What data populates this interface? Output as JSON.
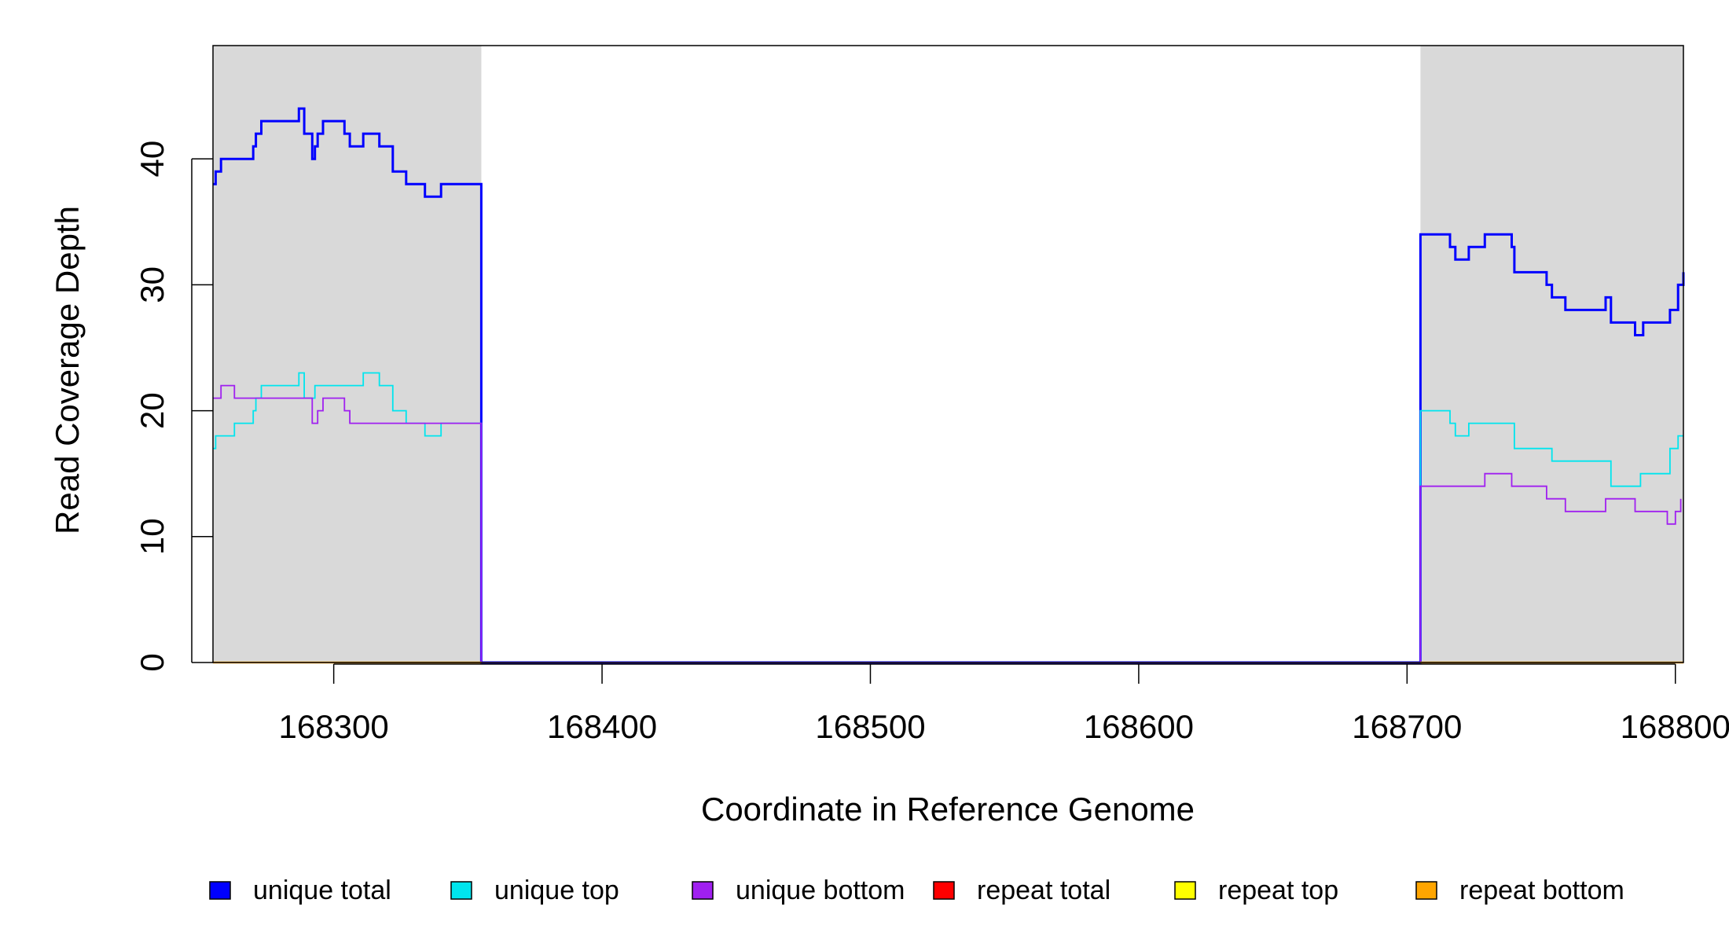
{
  "chart_data": {
    "type": "line",
    "title": "",
    "xlabel": "Coordinate in Reference Genome",
    "ylabel": "Read Coverage Depth",
    "xlim": [
      168255,
      168803
    ],
    "ylim": [
      0,
      49
    ],
    "x_ticks": [
      168300,
      168400,
      168500,
      168600,
      168700,
      168800
    ],
    "x_tick_labels": [
      "168300",
      "168400",
      "168500",
      "168600",
      "168700",
      "168800"
    ],
    "y_ticks": [
      0,
      10,
      20,
      30,
      40
    ],
    "y_tick_labels": [
      "0",
      "10",
      "20",
      "30",
      "40"
    ],
    "shaded_regions": [
      {
        "x_start": 168255,
        "x_end": 168355,
        "color": "#d9d9d9"
      },
      {
        "x_start": 168705,
        "x_end": 168803,
        "color": "#d9d9d9"
      }
    ],
    "legend_position": "bottom",
    "series": [
      {
        "name": "unique total",
        "color": "#0000ff",
        "points": [
          [
            168255,
            38
          ],
          [
            168256,
            39
          ],
          [
            168258,
            40
          ],
          [
            168270,
            41
          ],
          [
            168271,
            42
          ],
          [
            168273,
            43
          ],
          [
            168287,
            44
          ],
          [
            168289,
            42
          ],
          [
            168292,
            40
          ],
          [
            168293,
            41
          ],
          [
            168294,
            42
          ],
          [
            168296,
            43
          ],
          [
            168304,
            42
          ],
          [
            168306,
            41
          ],
          [
            168311,
            42
          ],
          [
            168317,
            41
          ],
          [
            168322,
            39
          ],
          [
            168327,
            38
          ],
          [
            168334,
            37
          ],
          [
            168340,
            38
          ],
          [
            168355,
            0
          ],
          [
            168705,
            34
          ],
          [
            168716,
            33
          ],
          [
            168718,
            32
          ],
          [
            168723,
            33
          ],
          [
            168729,
            34
          ],
          [
            168739,
            33
          ],
          [
            168740,
            31
          ],
          [
            168752,
            30
          ],
          [
            168754,
            29
          ],
          [
            168759,
            28
          ],
          [
            168774,
            29
          ],
          [
            168776,
            27
          ],
          [
            168785,
            26
          ],
          [
            168788,
            27
          ],
          [
            168798,
            28
          ],
          [
            168801,
            30
          ],
          [
            168803,
            31
          ]
        ]
      },
      {
        "name": "unique top",
        "color": "#00e5ee",
        "points": [
          [
            168255,
            17
          ],
          [
            168256,
            18
          ],
          [
            168263,
            19
          ],
          [
            168270,
            20
          ],
          [
            168271,
            21
          ],
          [
            168273,
            22
          ],
          [
            168287,
            23
          ],
          [
            168289,
            21
          ],
          [
            168293,
            22
          ],
          [
            168311,
            23
          ],
          [
            168317,
            22
          ],
          [
            168322,
            20
          ],
          [
            168327,
            19
          ],
          [
            168334,
            18
          ],
          [
            168340,
            19
          ],
          [
            168355,
            0
          ],
          [
            168705,
            20
          ],
          [
            168716,
            19
          ],
          [
            168718,
            18
          ],
          [
            168723,
            19
          ],
          [
            168740,
            17
          ],
          [
            168754,
            16
          ],
          [
            168776,
            14
          ],
          [
            168787,
            15
          ],
          [
            168798,
            17
          ],
          [
            168801,
            18
          ],
          [
            168803,
            18
          ]
        ]
      },
      {
        "name": "unique bottom",
        "color": "#a020f0",
        "points": [
          [
            168255,
            21
          ],
          [
            168258,
            22
          ],
          [
            168263,
            21
          ],
          [
            168292,
            19
          ],
          [
            168294,
            20
          ],
          [
            168296,
            21
          ],
          [
            168304,
            20
          ],
          [
            168306,
            19
          ],
          [
            168355,
            0
          ],
          [
            168705,
            14
          ],
          [
            168729,
            15
          ],
          [
            168739,
            14
          ],
          [
            168752,
            13
          ],
          [
            168759,
            12
          ],
          [
            168774,
            13
          ],
          [
            168785,
            12
          ],
          [
            168797,
            11
          ],
          [
            168800,
            12
          ],
          [
            168802,
            13
          ]
        ]
      },
      {
        "name": "repeat total",
        "color": "#ff0000",
        "points": []
      },
      {
        "name": "repeat top",
        "color": "#ffff00",
        "points": []
      },
      {
        "name": "repeat bottom",
        "color": "#ffa500",
        "points": []
      }
    ]
  }
}
